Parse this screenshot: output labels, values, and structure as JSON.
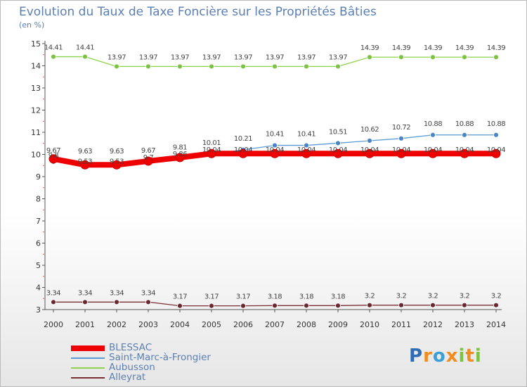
{
  "chart_data": {
    "type": "line",
    "title": "Evolution du Taux de Taxe Foncière sur les Propriétés Bâties",
    "unit_label": "(en %)",
    "xlabel": "",
    "ylabel": "(en %)",
    "ylim": [
      3,
      15
    ],
    "y_ticks": [
      3,
      4,
      5,
      6,
      7,
      8,
      9,
      10,
      11,
      12,
      13,
      14,
      15
    ],
    "categories": [
      "2000",
      "2001",
      "2002",
      "2003",
      "2004",
      "2005",
      "2006",
      "2007",
      "2008",
      "2009",
      "2010",
      "2011",
      "2012",
      "2013",
      "2014"
    ],
    "series": [
      {
        "name": "BLESSAC",
        "color": "#ee0000",
        "values": [
          9.8,
          9.53,
          9.53,
          9.7,
          9.86,
          10.04,
          10.04,
          10.04,
          10.04,
          10.04,
          10.04,
          10.04,
          10.04,
          10.04,
          10.04
        ],
        "labels": [
          "9.8",
          "9.53",
          "9.53",
          "9.7",
          "9.86",
          "10.04",
          "10.04",
          "10.04",
          "10.04",
          "10.04",
          "10.04",
          "10.04",
          "10.04",
          "10.04",
          "10.04"
        ]
      },
      {
        "name": "Saint-Marc-à-Frongier",
        "color": "#5b9bd5",
        "values": [
          9.67,
          9.63,
          9.63,
          9.67,
          9.81,
          10.01,
          10.21,
          10.41,
          10.41,
          10.51,
          10.62,
          10.72,
          10.88,
          10.88,
          10.88
        ],
        "labels": [
          "9.67",
          "9.63",
          "9.63",
          "9.67",
          "9.81",
          "10.01",
          "10.21",
          "10.41",
          "10.41",
          "10.51",
          "10.62",
          "10.72",
          "10.88",
          "10.88",
          "10.88"
        ]
      },
      {
        "name": "Aubusson",
        "color": "#8ed34f",
        "values": [
          14.41,
          14.41,
          13.97,
          13.97,
          13.97,
          13.97,
          13.97,
          13.97,
          13.97,
          13.97,
          14.39,
          14.39,
          14.39,
          14.39,
          14.39
        ],
        "labels": [
          "14.41",
          "14.41",
          "13.97",
          "13.97",
          "13.97",
          "13.97",
          "13.97",
          "13.97",
          "13.97",
          "13.97",
          "14.39",
          "14.39",
          "14.39",
          "14.39",
          "14.39"
        ]
      },
      {
        "name": "Alleyrat",
        "color": "#7a2f35",
        "values": [
          3.34,
          3.34,
          3.34,
          3.34,
          3.17,
          3.17,
          3.17,
          3.18,
          3.18,
          3.18,
          3.2,
          3.2,
          3.2,
          3.2,
          3.2
        ],
        "labels": [
          "3.34",
          "3.34",
          "3.34",
          "3.34",
          "3.17",
          "3.17",
          "3.17",
          "3.18",
          "3.18",
          "3.18",
          "3.2",
          "3.2",
          "3.2",
          "3.2",
          "3.2"
        ]
      }
    ],
    "legend_position": "bottom-left",
    "grid": false
  },
  "branding": {
    "logo_text": "Proxiti",
    "logo_letters": [
      "P",
      "r",
      "o",
      "x",
      "i",
      "t",
      "i"
    ],
    "logo_colors": [
      "#2e6db4",
      "#f28c1e",
      "#3aa0d8",
      "#f28c1e",
      "#7cc243",
      "#f28c1e",
      "#7cc243"
    ]
  }
}
